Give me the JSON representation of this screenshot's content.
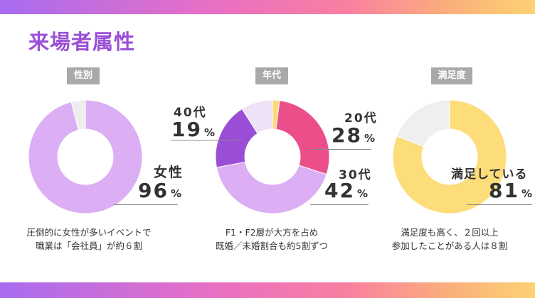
{
  "title": "来場者属性",
  "colors": {
    "title": "#9b4fd6",
    "tag_bg": "#a9a9a9"
  },
  "charts": [
    {
      "tag": "性別",
      "labels": [
        {
          "text": "女性",
          "value": "96",
          "unit": "%"
        }
      ],
      "caption_lines": [
        "圧倒的に女性が多いイベントで",
        "職業は「会社員」が約６割"
      ]
    },
    {
      "tag": "年代",
      "labels": [
        {
          "text": "40代",
          "value": "19",
          "unit": "%"
        },
        {
          "text": "20代",
          "value": "28",
          "unit": "%"
        },
        {
          "text": "30代",
          "value": "42",
          "unit": "%"
        }
      ],
      "caption_lines": [
        "F1・F2層が大方を占め",
        "既婚／未婚割合も約5割ずつ"
      ]
    },
    {
      "tag": "満足度",
      "labels": [
        {
          "text": "満足している",
          "value": "81",
          "unit": "%"
        }
      ],
      "caption_lines": [
        "満足度も高く、２回以上",
        "参加したことがある人は８割"
      ]
    }
  ],
  "chart_data": [
    {
      "type": "pie",
      "donut": true,
      "slices": [
        {
          "label": "女性",
          "value": 96,
          "color": "#dcaef4"
        },
        {
          "label": "",
          "value": 4,
          "color": "#eeeeee"
        }
      ]
    },
    {
      "type": "pie",
      "donut": true,
      "slices": [
        {
          "label": "",
          "value": 2,
          "color": "#fcd97a"
        },
        {
          "label": "20代",
          "value": 28,
          "color": "#ec4e8a"
        },
        {
          "label": "30代",
          "value": 42,
          "color": "#dcaef4"
        },
        {
          "label": "40代",
          "value": 19,
          "color": "#9a4ed6"
        },
        {
          "label": "",
          "value": 9,
          "color": "#efe2f7"
        }
      ]
    },
    {
      "type": "pie",
      "donut": true,
      "slices": [
        {
          "label": "満足している",
          "value": 81,
          "color": "#fcdd7a"
        },
        {
          "label": "",
          "value": 19,
          "color": "#efefef"
        }
      ]
    }
  ]
}
